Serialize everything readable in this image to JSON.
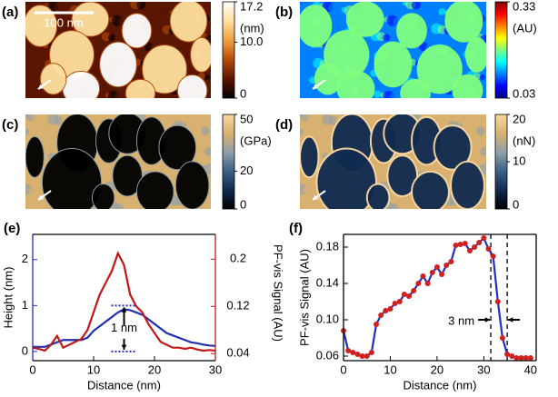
{
  "chart_data": [
    {
      "type": "image",
      "label": "(a)",
      "scale_bar": "100 nm",
      "colorbar_label": "(nm)",
      "clim": [
        0,
        17.2
      ],
      "cticks": [
        0,
        {
          "value": 10,
          "label": "10.0"
        },
        17.2
      ],
      "colormap": [
        "#000000",
        "#5a1600",
        "#b54b08",
        "#f0a040",
        "#ffe0a0",
        "#ffffff"
      ]
    },
    {
      "type": "image",
      "label": "(b)",
      "colorbar_label": "(AU)",
      "clim": [
        0.03,
        0.33
      ],
      "cticks": [
        0.03,
        0.33
      ],
      "colormap": [
        "#00007f",
        "#0000ff",
        "#0080ff",
        "#00ffff",
        "#80ff80",
        "#ffff00",
        "#ff8000",
        "#ff0000",
        "#7f0000"
      ]
    },
    {
      "type": "image",
      "label": "(c)",
      "colorbar_label": "(GPa)",
      "clim": [
        0,
        50
      ],
      "cticks": [
        0,
        20,
        50
      ],
      "colormap": [
        "#000000",
        "#102a50",
        "#3a6088",
        "#8fa0a8",
        "#d8b070",
        "#f8d8a0"
      ]
    },
    {
      "type": "image",
      "label": "(d)",
      "colorbar_label": "(nN)",
      "clim": [
        0,
        20
      ],
      "cticks": [
        0,
        10,
        20
      ],
      "colormap": [
        "#000000",
        "#102a50",
        "#3a6088",
        "#8fa0a8",
        "#d8b070",
        "#f8d8a0"
      ]
    },
    {
      "type": "line",
      "label": "(e)",
      "xlabel": "Distance (nm)",
      "ylabel": "Height (nm)",
      "y2label": "PF-vis Signal (AU)",
      "annotation": "1 nm",
      "x": [
        0,
        1,
        2,
        3,
        4,
        5,
        6,
        7,
        8,
        9,
        10,
        11,
        12,
        13,
        14,
        15,
        16,
        17,
        18,
        19,
        20,
        21,
        22,
        23,
        24,
        25,
        26,
        27,
        28,
        29,
        30
      ],
      "xlim": [
        0,
        30
      ],
      "xticks": [
        0,
        10,
        20,
        30
      ],
      "ylim": [
        -0.2,
        2.55
      ],
      "yticks": [
        0,
        1,
        2
      ],
      "y2lim": [
        0.028,
        0.242
      ],
      "y2ticks": [
        0.04,
        0.12,
        0.2
      ],
      "series": [
        {
          "color": "#2030b0",
          "values": [
            0.1,
            0.1,
            0.1,
            0.15,
            0.2,
            0.25,
            0.25,
            0.25,
            0.25,
            0.3,
            0.45,
            0.55,
            0.65,
            0.75,
            0.85,
            0.92,
            0.9,
            0.85,
            0.8,
            0.7,
            0.6,
            0.5,
            0.4,
            0.35,
            0.3,
            0.25,
            0.2,
            0.18,
            0.15,
            0.13,
            0.12
          ]
        },
        {
          "color": "#c01818",
          "axis": "y2",
          "values": [
            0.05,
            0.048,
            0.045,
            0.055,
            0.07,
            0.05,
            0.055,
            0.06,
            0.065,
            0.08,
            0.11,
            0.14,
            0.16,
            0.18,
            0.21,
            0.19,
            0.14,
            0.12,
            0.11,
            0.09,
            0.075,
            0.06,
            0.055,
            0.05,
            0.05,
            0.048,
            0.05,
            0.047,
            0.045,
            0.046,
            0.045
          ]
        }
      ]
    },
    {
      "type": "line",
      "label": "(f)",
      "xlabel": "Distance (nm)",
      "ylabel": "PF-vis Signal (AU)",
      "annotation": "3 nm",
      "vlines": [
        31.5,
        35
      ],
      "x": [
        0,
        1,
        2,
        3,
        4,
        5,
        6,
        7,
        8,
        9,
        10,
        11,
        12,
        13,
        14,
        15,
        16,
        17,
        18,
        19,
        20,
        21,
        22,
        23,
        24,
        25,
        26,
        27,
        28,
        29,
        30,
        31,
        32,
        33,
        34,
        35,
        36,
        37,
        38,
        39,
        40
      ],
      "xlim": [
        0,
        41.2
      ],
      "xticks": [
        0,
        10,
        20,
        30,
        40
      ],
      "ylim": [
        0.055,
        0.194
      ],
      "yticks": [
        0.06,
        {
          "value": 0.1,
          "label": "0.10"
        },
        0.14,
        0.18
      ],
      "series": [
        {
          "color": "#2030c0",
          "marker_color": "#d02020",
          "values": [
            0.088,
            0.066,
            0.064,
            0.062,
            0.06,
            0.06,
            0.064,
            0.095,
            0.105,
            0.11,
            0.112,
            0.118,
            0.12,
            0.128,
            0.126,
            0.132,
            0.14,
            0.148,
            0.14,
            0.152,
            0.158,
            0.15,
            0.16,
            0.164,
            0.182,
            0.183,
            0.184,
            0.176,
            0.18,
            0.185,
            0.19,
            0.178,
            0.17,
            0.12,
            0.08,
            0.062,
            0.06,
            0.058,
            0.058,
            0.058,
            0.058
          ]
        }
      ]
    }
  ]
}
